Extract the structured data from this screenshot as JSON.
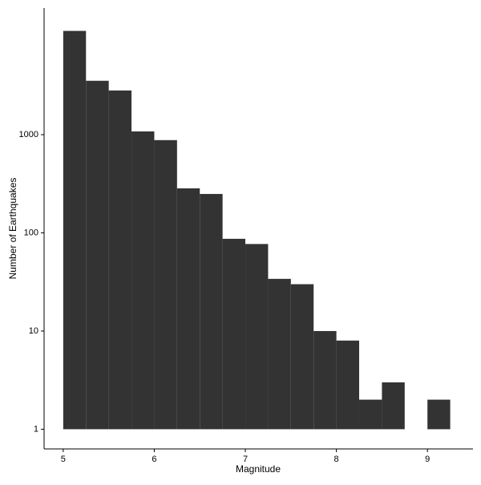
{
  "chart_data": {
    "type": "histogram",
    "x_label": "Magnitude",
    "y_label": "Number of Earthquakes",
    "bins": [
      5,
      5.25,
      5.5,
      5.75,
      6,
      6.25,
      6.5,
      6.75,
      7,
      7.25,
      7.5,
      7.75,
      8,
      8.25,
      8.5,
      8.75,
      9,
      9.25
    ],
    "values": [
      11400,
      3540,
      2820,
      1080,
      880,
      284,
      249,
      87,
      77,
      34,
      30,
      10,
      8,
      2,
      3,
      0,
      2
    ],
    "color": "#333333",
    "xlim": [
      4.79,
      9.5
    ],
    "xticks": [
      5,
      6,
      7,
      8,
      9
    ],
    "ylim": [
      0.63,
      19500
    ],
    "yticks": [
      1,
      10,
      100,
      1000
    ],
    "log_y": true,
    "grid": false
  }
}
